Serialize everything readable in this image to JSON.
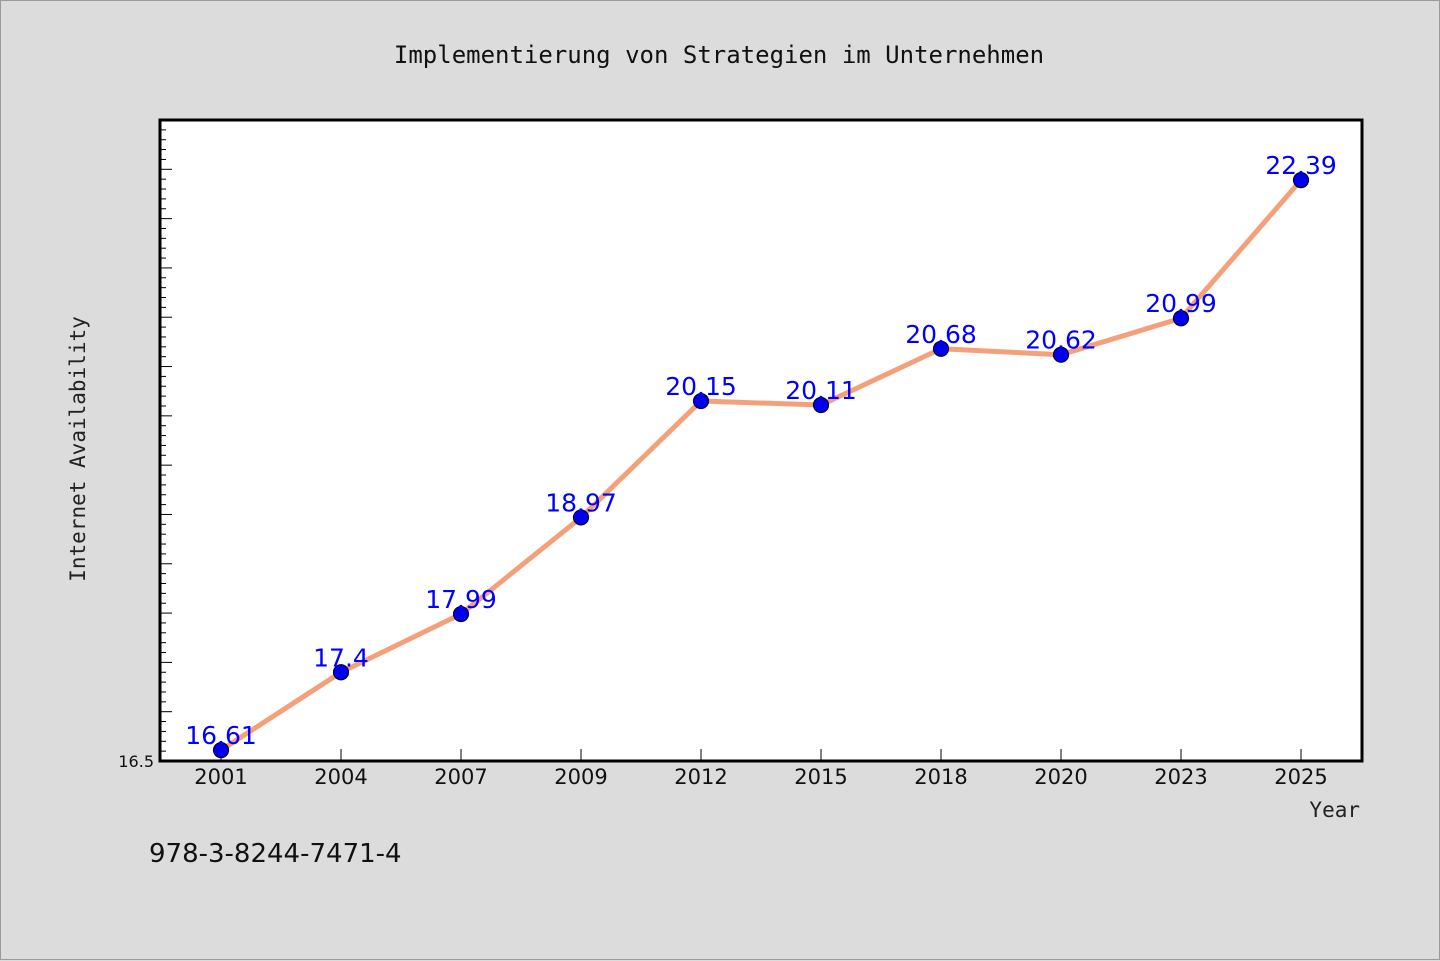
{
  "chart_data": {
    "type": "line",
    "title": "Implementierung von Strategien im Unternehmen",
    "xlabel": "Year",
    "ylabel": "Internet Availability",
    "categories": [
      "2001",
      "2004",
      "2007",
      "2009",
      "2012",
      "2015",
      "2018",
      "2020",
      "2023",
      "2025"
    ],
    "series": [
      {
        "values": [
          16.61,
          17.4,
          17.99,
          18.97,
          20.15,
          20.11,
          20.68,
          20.62,
          20.99,
          22.39
        ],
        "data_labels": [
          "16.61",
          "17.4",
          "17.99",
          "18.97",
          "20.15",
          "20.11",
          "20.68",
          "20.62",
          "20.99",
          "22.39"
        ]
      }
    ],
    "ylim": [
      16.5,
      23.0
    ],
    "yticks_labeled": [
      "16.5"
    ],
    "grid": false,
    "colors": {
      "line": "#f4a07a",
      "marker": "#0000ee",
      "data_label": "#0000ff",
      "background": "#dcdcdc",
      "plot_background": "#ffffff"
    }
  },
  "footer": {
    "isbn": "978-3-8244-7471-4"
  }
}
